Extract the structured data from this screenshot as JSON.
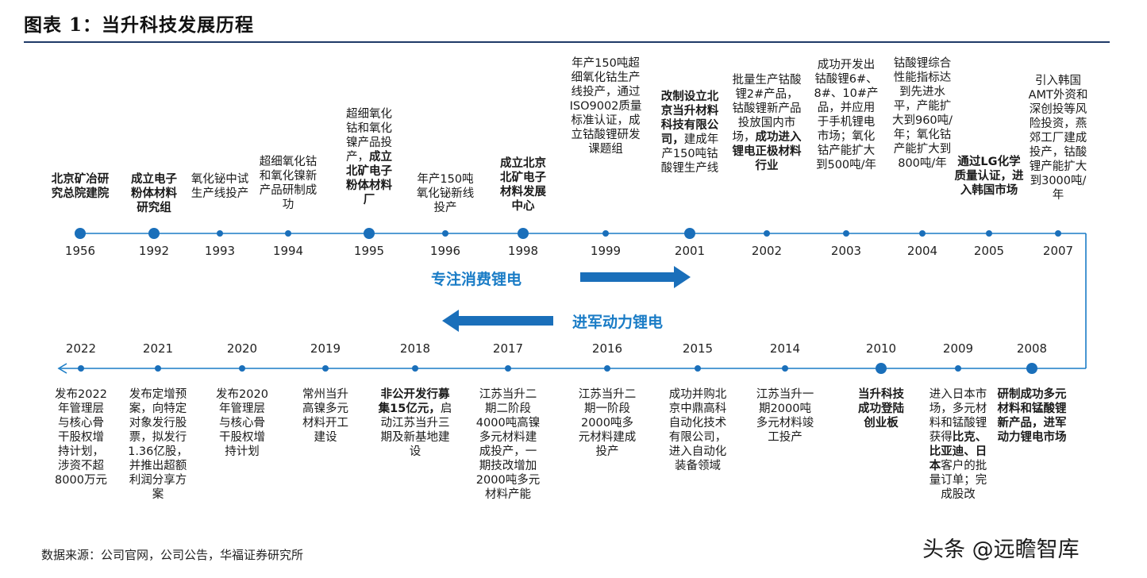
{
  "title": "图表 1：当升科技发展历程",
  "source": "数据来源：公司官网，公司公告，华福证券研究所",
  "watermark": "头条 @远瞻智库",
  "arrows": {
    "top": "专注消费锂电",
    "bottom": "进军动力锂电"
  },
  "colors": {
    "line": "#1a7cc6",
    "dot": "#1a6fba",
    "rule": "#1f3a68"
  },
  "top_row": [
    {
      "year": "1956",
      "segments": [
        {
          "t": "北京矿冶研究总院建院",
          "b": true
        }
      ]
    },
    {
      "year": "1992",
      "segments": [
        {
          "t": "成立电子粉体材料研究组",
          "b": true
        }
      ]
    },
    {
      "year": "1993",
      "segments": [
        {
          "t": "氧化铋中试生产线投产",
          "b": false
        }
      ]
    },
    {
      "year": "1994",
      "segments": [
        {
          "t": "超细氧化钴和氧化镍新产品研制成功",
          "b": false
        }
      ]
    },
    {
      "year": "1995",
      "segments": [
        {
          "t": "超细氧化钴和氧化镍产品投产，",
          "b": false
        },
        {
          "t": "成立北矿电子粉体材料厂",
          "b": true
        }
      ]
    },
    {
      "year": "1996",
      "segments": [
        {
          "t": "年产150吨氧化铋新线投产",
          "b": false
        }
      ]
    },
    {
      "year": "1998",
      "segments": [
        {
          "t": "成立北京北矿电子材料发展中心",
          "b": true
        }
      ]
    },
    {
      "year": "1999",
      "segments": [
        {
          "t": "年产150吨超细氧化钴生产线投产，通过ISO9002质量标准认证，成立钴酸锂研发课题组",
          "b": false
        }
      ]
    },
    {
      "year": "2001",
      "segments": [
        {
          "t": "改制设立北京当升材料科技有限公司，",
          "b": true
        },
        {
          "t": "建成年产150吨钴酸锂生产线",
          "b": false
        }
      ]
    },
    {
      "year": "2002",
      "segments": [
        {
          "t": "批量生产钴酸锂2#产品，钴酸锂新产品投放国内市场，",
          "b": false
        },
        {
          "t": "成功进入锂电正极材料行业",
          "b": true
        }
      ]
    },
    {
      "year": "2003",
      "segments": [
        {
          "t": "成功开发出钴酸锂6#、8#、10#产品，并应用于手机锂电市场；氧化钴产能扩大到500吨/年",
          "b": false
        }
      ]
    },
    {
      "year": "2004",
      "segments": [
        {
          "t": "钴酸锂综合性能指标达到先进水平，产能扩大到960吨/年；氧化钴产能扩大到800吨/年",
          "b": false
        }
      ]
    },
    {
      "year": "2005",
      "segments": [
        {
          "t": "通过LG化学质量认证，进入韩国市场",
          "b": true
        }
      ]
    },
    {
      "year": "2007",
      "segments": [
        {
          "t": "引入韩国AMT外资和深创投等风险投资，燕郊工厂建成投产，钴酸锂产能扩大到3000吨/年",
          "b": false
        }
      ]
    }
  ],
  "bottom_row": [
    {
      "year": "2022",
      "segments": [
        {
          "t": "发布2022年管理层与核心骨干股权增持计划，涉资不超8000万元",
          "b": false
        }
      ]
    },
    {
      "year": "2021",
      "segments": [
        {
          "t": "发布定增预案，向特定对象发行股票，拟发行1.36亿股，并推出超额利润分享方案",
          "b": false
        }
      ]
    },
    {
      "year": "2020",
      "segments": [
        {
          "t": "发布2020年管理层与核心骨干股权增持计划",
          "b": false
        }
      ]
    },
    {
      "year": "2019",
      "segments": [
        {
          "t": "常州当升高镍多元材料开工建设",
          "b": false
        }
      ]
    },
    {
      "year": "2018",
      "segments": [
        {
          "t": "非公开发行募集15亿元，",
          "b": true
        },
        {
          "t": "启动江苏当升三期及新基地建设",
          "b": false
        }
      ]
    },
    {
      "year": "2017",
      "segments": [
        {
          "t": "江苏当升二期二阶段4000吨高镍多元材料建成投产，一期技改增加2000吨多元材料产能",
          "b": false
        }
      ]
    },
    {
      "year": "2016",
      "segments": [
        {
          "t": "江苏当升二期一阶段2000吨多元材料建成投产",
          "b": false
        }
      ]
    },
    {
      "year": "2015",
      "segments": [
        {
          "t": "成功并购北京中鼎高科自动化技术有限公司，进入自动化装备领域",
          "b": false
        }
      ]
    },
    {
      "year": "2014",
      "segments": [
        {
          "t": "江苏当升一期2000吨多元材料竣工投产",
          "b": false
        }
      ]
    },
    {
      "year": "2010",
      "segments": [
        {
          "t": "当升科技成功登陆创业板",
          "b": true
        }
      ]
    },
    {
      "year": "2009",
      "segments": [
        {
          "t": "进入日本市场，多元材料和锰酸锂获得",
          "b": false
        },
        {
          "t": "比克、比亚迪、日本",
          "b": true
        },
        {
          "t": "客户的批量订单；完成股改",
          "b": false
        }
      ]
    },
    {
      "year": "2008",
      "segments": [
        {
          "t": "研制成功多元材料和锰酸锂新产品，进军动力锂电市场",
          "b": true
        }
      ]
    }
  ]
}
